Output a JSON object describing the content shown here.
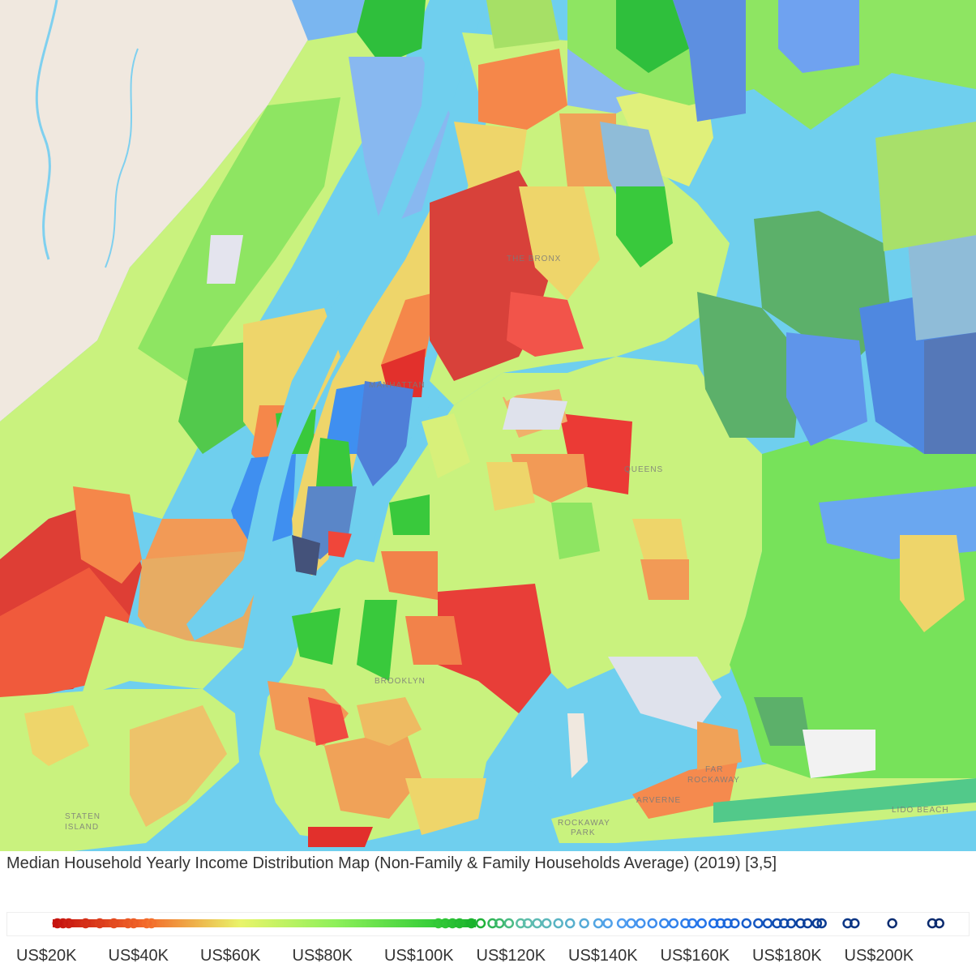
{
  "title": "Median Household Yearly Income Distribution Map (Non-Family & Family Households Average) (2019) [3,5]",
  "map_labels": {
    "bronx": "THE BRONX",
    "manhattan": "MANHATTAN",
    "queens": "QUEENS",
    "brooklyn": "BROOKLYN",
    "far_rockaway_1": "FAR",
    "far_rockaway_2": "ROCKAWAY",
    "arverne": "ARVERNE",
    "rockaway_park_1": "ROCKAWAY",
    "rockaway_park_2": "PARK",
    "staten_island_1": "STATEN",
    "staten_island_2": "ISLAND",
    "lido_beach": "LIDO BEACH"
  },
  "legend": {
    "ticks": [
      "US$20K",
      "US$40K",
      "US$60K",
      "US$80K",
      "US$100K",
      "US$120K",
      "US$140K",
      "US$160K",
      "US$180K",
      "US$200K"
    ],
    "tick_values": [
      20000,
      40000,
      60000,
      80000,
      100000,
      120000,
      140000,
      160000,
      180000,
      200000
    ],
    "scale_stops": [
      {
        "value": 20000,
        "color": "#c4100e"
      },
      {
        "value": 40000,
        "color": "#f36a2a"
      },
      {
        "value": 60000,
        "color": "#e9f46a"
      },
      {
        "value": 80000,
        "color": "#8ef05a"
      },
      {
        "value": 100000,
        "color": "#39cf3a"
      },
      {
        "value": 110000,
        "color": "#18b02c"
      },
      {
        "value": 120000,
        "color": "#5fbfa8"
      },
      {
        "value": 140000,
        "color": "#4f9ef0"
      },
      {
        "value": 160000,
        "color": "#1f6fe8"
      },
      {
        "value": 180000,
        "color": "#0a3f9a"
      },
      {
        "value": 200000,
        "color": "#0a2a6e"
      }
    ],
    "sample_values": [
      21000,
      22200,
      23400,
      27000,
      30000,
      33000,
      36000,
      37200,
      40000,
      41000,
      102000,
      103500,
      105000,
      106500,
      109000,
      111000,
      113500,
      115000,
      117000,
      119500,
      121000,
      123000,
      125000,
      127500,
      130000,
      133000,
      136000,
      138000,
      141000,
      143000,
      145000,
      147500,
      150000,
      152000,
      154500,
      156000,
      158000,
      160500,
      162000,
      163500,
      165000,
      167500,
      170000,
      172000,
      174000,
      175500,
      177000,
      179000,
      180500,
      182500,
      183500,
      189000,
      190500,
      198500,
      207000,
      208500
    ]
  },
  "colors": {
    "water": "#6fcfee",
    "land_nj": "#f0e8df",
    "red": "#e2302c",
    "orange": "#f5874a",
    "yellow": "#eed56a",
    "light_green": "#c9f27e",
    "green": "#77e25a",
    "blue": "#6aa7f0"
  }
}
